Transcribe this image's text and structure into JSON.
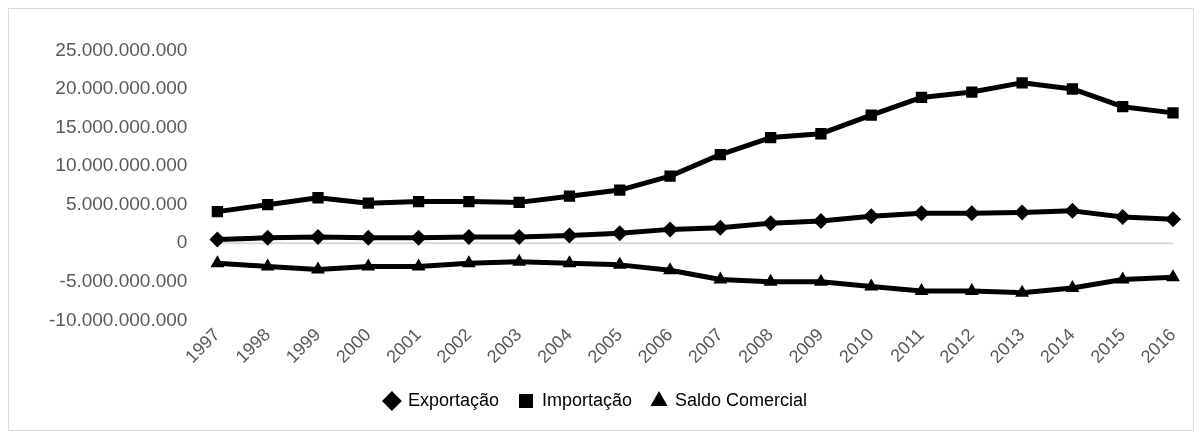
{
  "chart_data": {
    "type": "line",
    "categories": [
      "1997",
      "1998",
      "1999",
      "2000",
      "2001",
      "2002",
      "2003",
      "2004",
      "2005",
      "2006",
      "2007",
      "2008",
      "2009",
      "2010",
      "2011",
      "2012",
      "2013",
      "2014",
      "2015",
      "2016"
    ],
    "series": [
      {
        "name": "Exportação",
        "color": "#000000",
        "marker": "diamond",
        "values": [
          500000000,
          700000000,
          800000000,
          700000000,
          700000000,
          800000000,
          800000000,
          1000000000,
          1300000000,
          1800000000,
          2000000000,
          2600000000,
          2900000000,
          3500000000,
          3900000000,
          3900000000,
          4000000000,
          4200000000,
          3400000000,
          3100000000
        ]
      },
      {
        "name": "Importação",
        "color": "#000000",
        "marker": "square",
        "values": [
          4100000000,
          5000000000,
          5900000000,
          5200000000,
          5400000000,
          5400000000,
          5300000000,
          6100000000,
          6900000000,
          8700000000,
          11500000000,
          13700000000,
          14200000000,
          16600000000,
          18900000000,
          19600000000,
          20800000000,
          20000000000,
          17700000000,
          16900000000
        ]
      },
      {
        "name": "Saldo Comercial",
        "color": "#000000",
        "marker": "triangle",
        "values": [
          -2600000000,
          -3000000000,
          -3400000000,
          -3000000000,
          -3000000000,
          -2600000000,
          -2400000000,
          -2600000000,
          -2800000000,
          -3500000000,
          -4700000000,
          -5000000000,
          -5000000000,
          -5600000000,
          -6200000000,
          -6200000000,
          -6400000000,
          -5800000000,
          -4700000000,
          -4400000000
        ]
      }
    ],
    "ylim": [
      -10000000000,
      25000000000
    ],
    "yticks": [
      {
        "value": -10000000000,
        "label": "-10.000.000.000"
      },
      {
        "value": -5000000000,
        "label": "-5.000.000.000"
      },
      {
        "value": 0,
        "label": "0"
      },
      {
        "value": 5000000000,
        "label": "5.000.000.000"
      },
      {
        "value": 10000000000,
        "label": "10.000.000.000"
      },
      {
        "value": 15000000000,
        "label": "15.000.000.000"
      },
      {
        "value": 20000000000,
        "label": "20.000.000.000"
      },
      {
        "value": 25000000000,
        "label": "25.000.000.000"
      }
    ],
    "ref_lines": [
      {
        "axis": "y",
        "value": 0,
        "color": "#d9d9d9"
      }
    ],
    "grid": false,
    "legend": "bottom",
    "line_style": "solid"
  }
}
